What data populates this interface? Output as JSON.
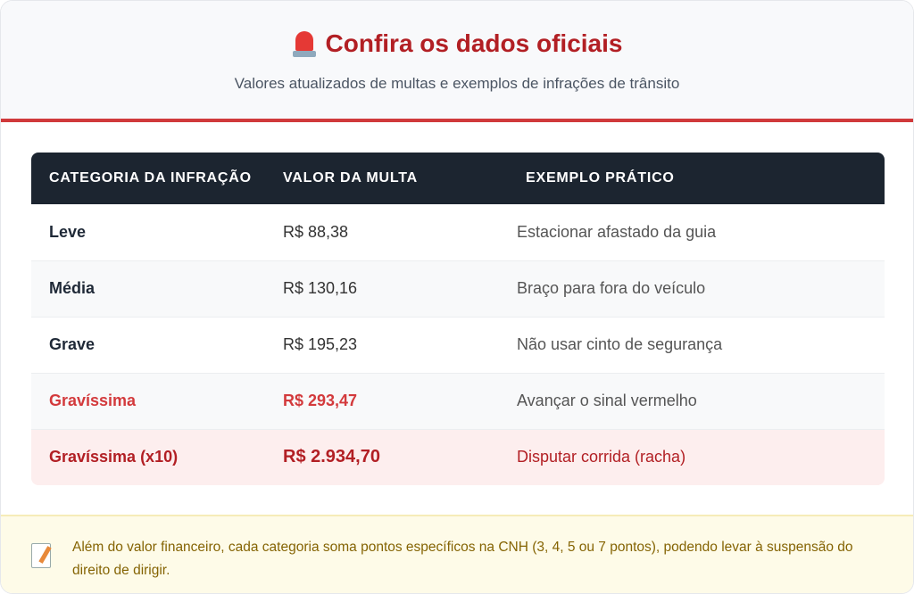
{
  "header": {
    "icon": "police-siren-icon",
    "title": "Confira os dados oficiais",
    "subtitle": "Valores atualizados de multas e exemplos de infrações de trânsito"
  },
  "table": {
    "columns": [
      "CATEGORIA DA INFRAÇÃO",
      "VALOR DA MULTA",
      "EXEMPLO PRÁTICO"
    ],
    "rows": [
      {
        "category": "Leve",
        "value": "R$ 88,38",
        "example": "Estacionar afastado da guia"
      },
      {
        "category": "Média",
        "value": "R$ 130,16",
        "example": "Braço para fora do veículo"
      },
      {
        "category": "Grave",
        "value": "R$ 195,23",
        "example": "Não usar cinto de segurança"
      },
      {
        "category": "Gravíssima",
        "value": "R$ 293,47",
        "example": "Avançar o sinal vermelho"
      },
      {
        "category": "Gravíssima (x10)",
        "value": "R$ 2.934,70",
        "example": "Disputar corrida (racha)"
      }
    ]
  },
  "note": {
    "icon": "memo-icon",
    "text": "Além do valor financeiro, cada categoria soma pontos específicos na CNH (3, 4, 5 ou 7 pontos), podendo levar à suspensão do direito de dirigir."
  },
  "colors": {
    "accent": "#d0393b",
    "header_bg": "#1c2530",
    "danger_row_bg": "#fdeeee",
    "note_bg": "#fefbe8"
  }
}
